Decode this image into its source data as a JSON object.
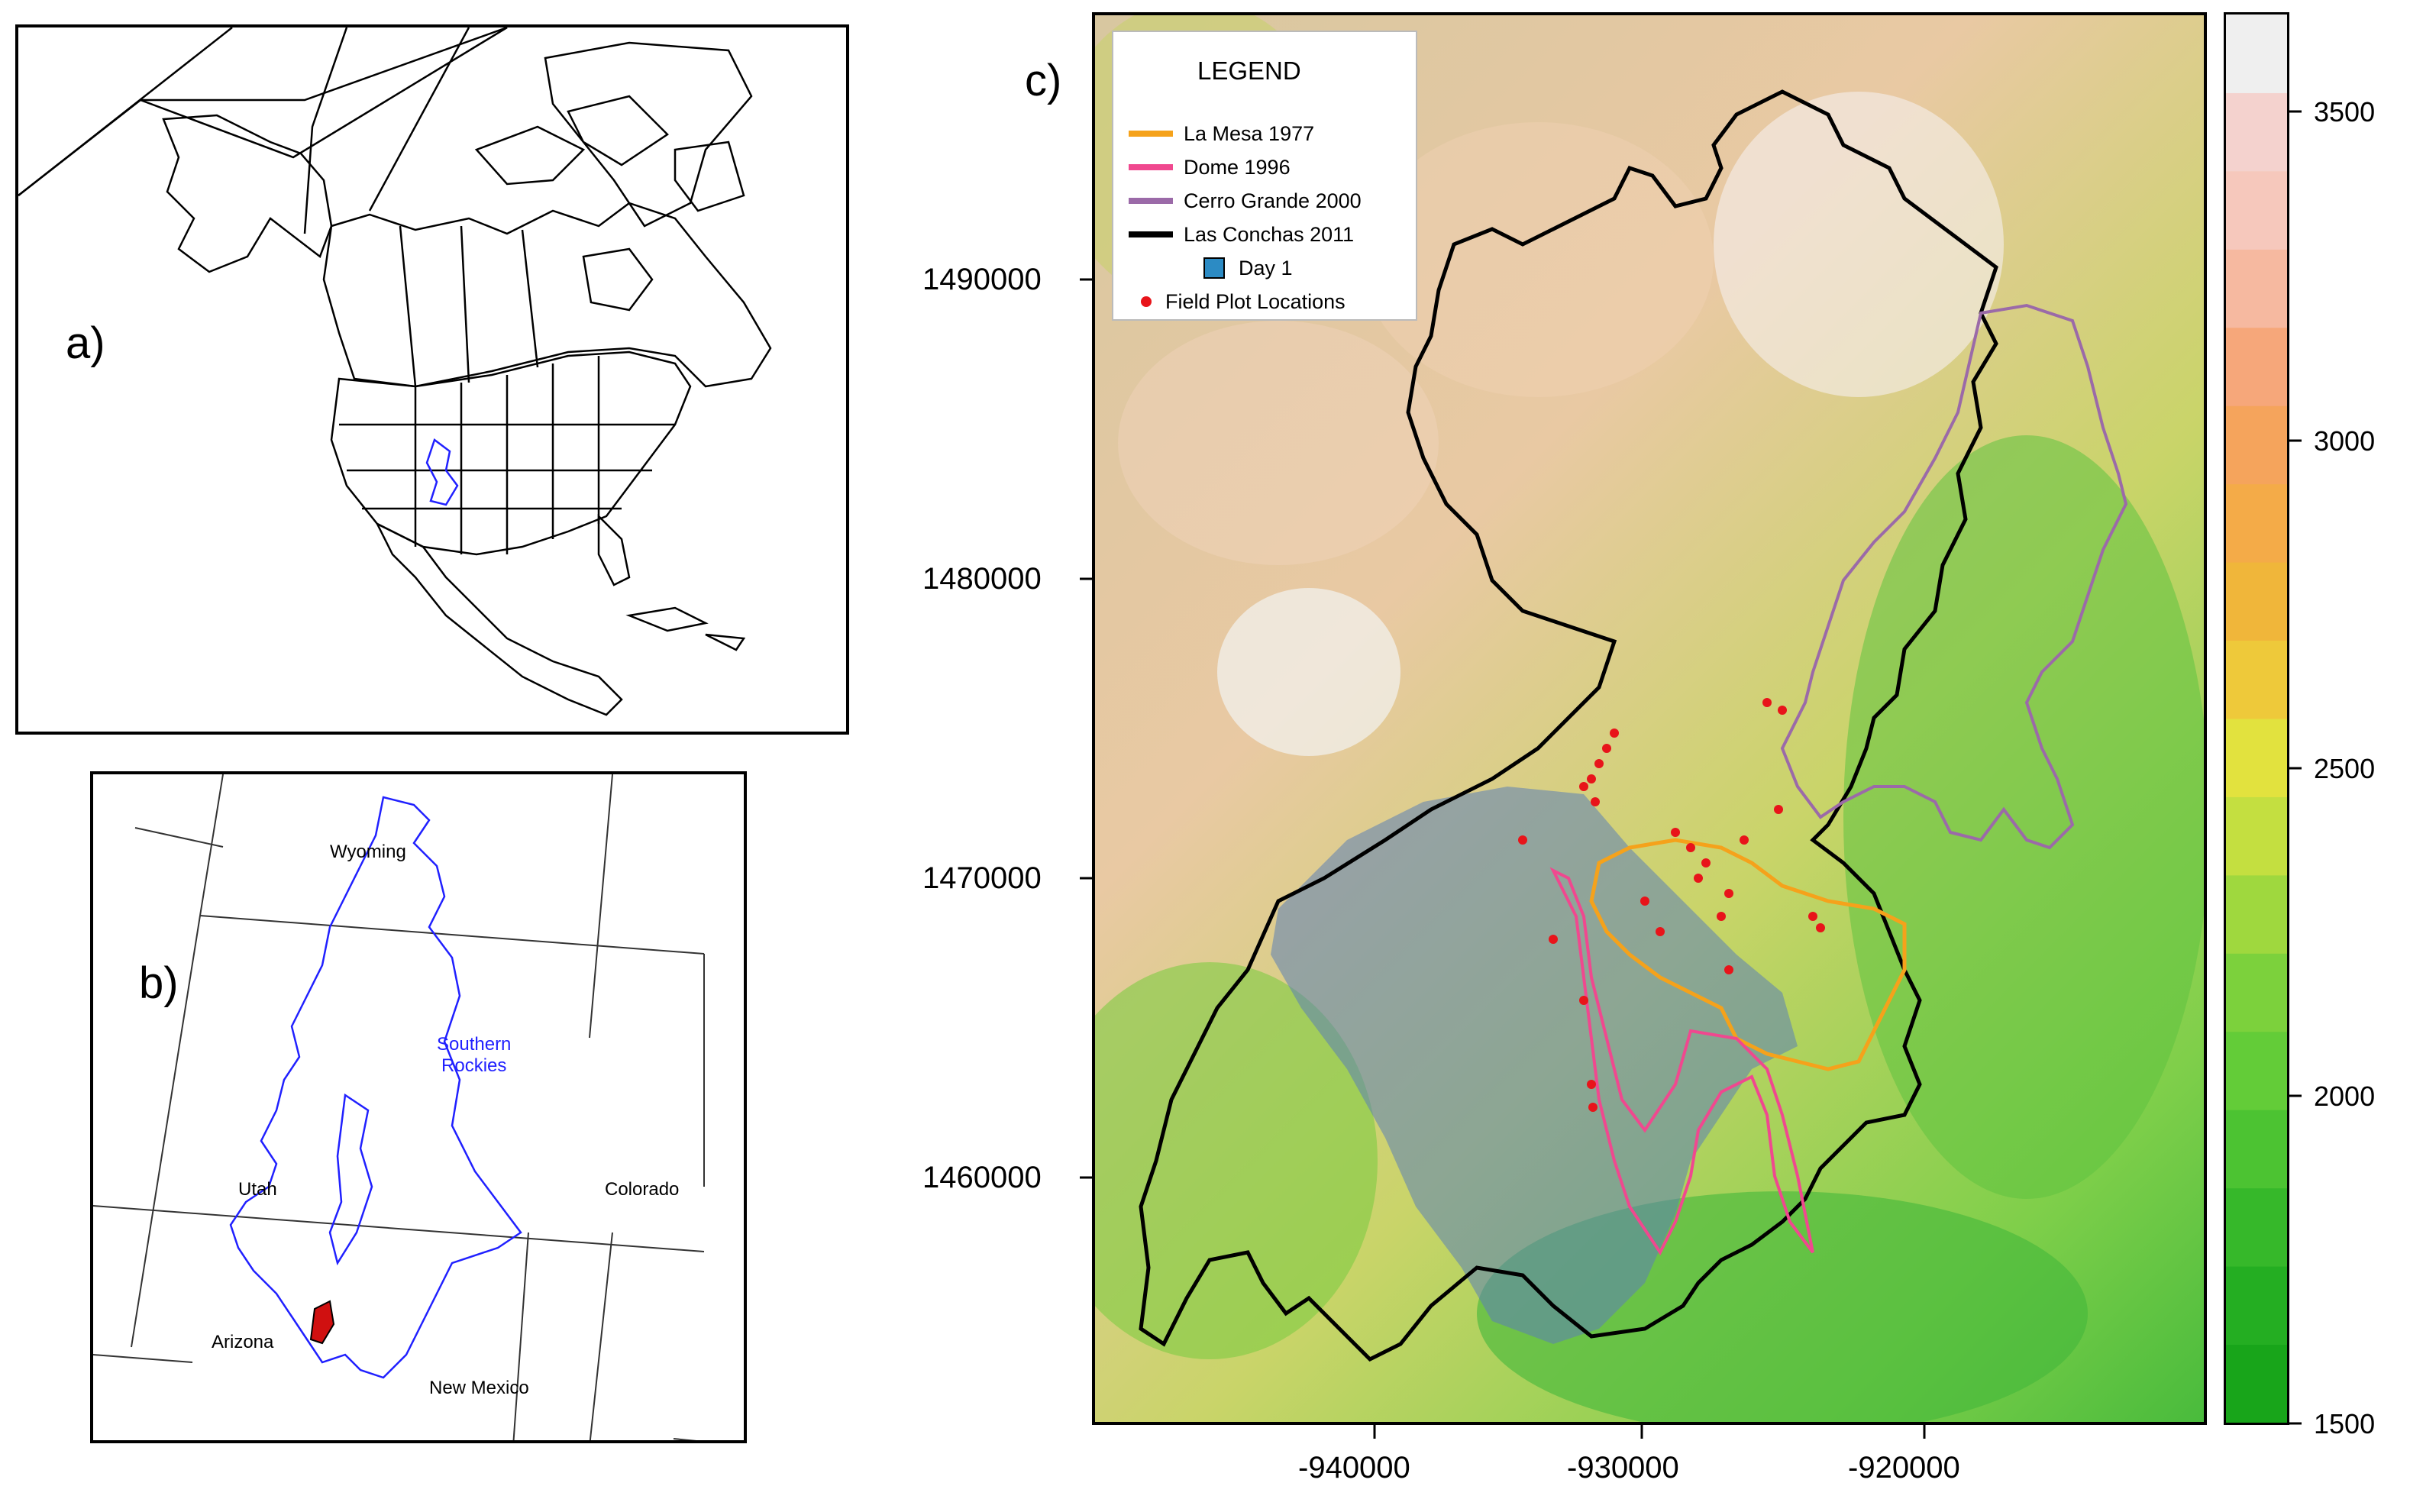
{
  "panels": {
    "a": {
      "label": "a)"
    },
    "b": {
      "label": "b)",
      "states": [
        "Wyoming",
        "Utah",
        "Colorado",
        "Arizona",
        "New Mexico"
      ],
      "region": "Southern\nRockies",
      "colors": {
        "region": "#2020ff",
        "burn": "#d01010"
      }
    },
    "c": {
      "label": "c)",
      "legend": {
        "title": "LEGEND",
        "items": [
          {
            "label": "La Mesa 1977",
            "color": "#f5a21b",
            "kind": "line"
          },
          {
            "label": "Dome 1996",
            "color": "#f0488f",
            "kind": "line"
          },
          {
            "label": "Cerro Grande 2000",
            "color": "#9b6aa8",
            "kind": "line"
          },
          {
            "label": "Las Conchas 2011",
            "color": "#000000",
            "kind": "line"
          },
          {
            "label": "Day 1",
            "color": "#2c8bc4",
            "kind": "box"
          },
          {
            "label": "Field Plot Locations",
            "color": "#e8141a",
            "kind": "dot"
          }
        ]
      },
      "y_ticks": [
        "1490000",
        "1480000",
        "1470000",
        "1460000"
      ],
      "x_ticks": [
        "-940000",
        "-930000",
        "-920000"
      ]
    },
    "colorbar": {
      "ticks": [
        "3500",
        "3000",
        "2500",
        "2000",
        "1500"
      ],
      "range": [
        1500,
        3650
      ],
      "bands": [
        "#18a51a",
        "#24ae22",
        "#36b82a",
        "#4cc332",
        "#63cc38",
        "#7cd13c",
        "#9fd83e",
        "#c4df40",
        "#e2e23e",
        "#eec93a",
        "#f0b63a",
        "#f4ab48",
        "#f5a45c",
        "#f6a77a",
        "#f6b9a0",
        "#f6c8bc",
        "#f4d2ce",
        "#efefef"
      ]
    }
  }
}
